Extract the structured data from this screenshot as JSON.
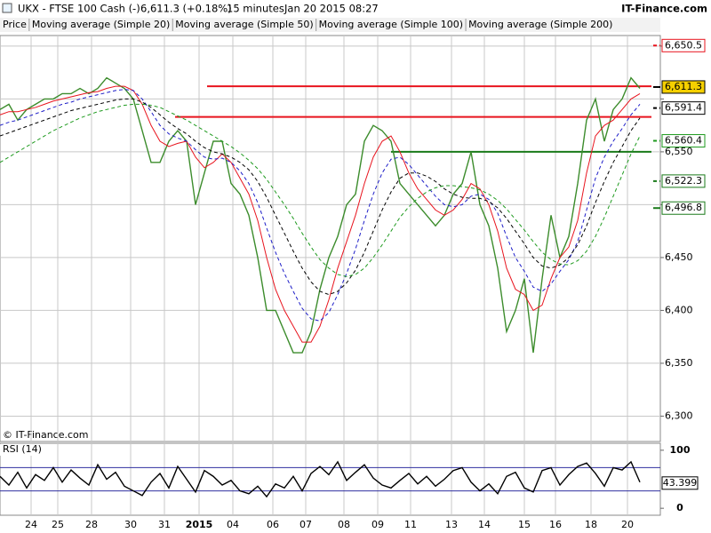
{
  "header": {
    "title": "UKX - FTSE 100 Cash (-)",
    "last": "6,611.3 (+0.18%)",
    "interval": "15 minutes",
    "timestamp": "Jan 20 2015 08:27",
    "source": "IT-Finance.com"
  },
  "chart_data": [
    {
      "type": "line",
      "price_label": "Price",
      "copyright": "© IT-Finance.com",
      "x": [
        0,
        1,
        2,
        3,
        4,
        5,
        6,
        7,
        8,
        9,
        10,
        11,
        12,
        13,
        14,
        15,
        16,
        17,
        18,
        19,
        20,
        21,
        22,
        23,
        24,
        25,
        26,
        27,
        28,
        29,
        30,
        31,
        32,
        33,
        34,
        35,
        36,
        37,
        38,
        39,
        40,
        41,
        42,
        43,
        44,
        45,
        46,
        47,
        48,
        49,
        50,
        51,
        52,
        53,
        54,
        55,
        56,
        57,
        58,
        59,
        60,
        61,
        62,
        63,
        64,
        65,
        66,
        67,
        68,
        69,
        70,
        71,
        72
      ],
      "xlim": [
        0,
        74.3
      ],
      "xticks": [
        {
          "value": 3.5,
          "label": "24"
        },
        {
          "value": 6.5,
          "label": "25"
        },
        {
          "value": 10.3,
          "label": "28"
        },
        {
          "value": 14.7,
          "label": "30"
        },
        {
          "value": 18.5,
          "label": "31"
        },
        {
          "value": 22.4,
          "label": "2015"
        },
        {
          "value": 26.2,
          "label": "04"
        },
        {
          "value": 30.7,
          "label": "06"
        },
        {
          "value": 34.4,
          "label": "07"
        },
        {
          "value": 38.7,
          "label": "08"
        },
        {
          "value": 42.5,
          "label": "09"
        },
        {
          "value": 46.2,
          "label": "11"
        },
        {
          "value": 50.8,
          "label": "13"
        },
        {
          "value": 54.5,
          "label": "14"
        },
        {
          "value": 59,
          "label": "15"
        },
        {
          "value": 62.5,
          "label": "16"
        },
        {
          "value": 66.5,
          "label": "18"
        },
        {
          "value": 70.6,
          "label": "20"
        }
      ],
      "ylim": [
        6276,
        6660
      ],
      "yticks": [
        {
          "value": 6300,
          "label": "6,300"
        },
        {
          "value": 6350,
          "label": "6,350"
        },
        {
          "value": 6400,
          "label": "6,400"
        },
        {
          "value": 6450,
          "label": "6,450"
        },
        {
          "value": 6500,
          "label": ""
        },
        {
          "value": 6550,
          "label": "6,550"
        },
        {
          "value": 6600,
          "label": ""
        },
        {
          "value": 6650,
          "label": ""
        }
      ],
      "series": [
        {
          "name": "Price",
          "color": "#3c8c2c",
          "values": [
            6590,
            6595,
            6580,
            6590,
            6595,
            6600,
            6600,
            6605,
            6605,
            6610,
            6605,
            6610,
            6620,
            6615,
            6610,
            6600,
            6570,
            6540,
            6540,
            6560,
            6570,
            6560,
            6500,
            6530,
            6560,
            6560,
            6520,
            6510,
            6490,
            6450,
            6400,
            6400,
            6380,
            6360,
            6360,
            6380,
            6420,
            6450,
            6470,
            6500,
            6510,
            6560,
            6575,
            6570,
            6560,
            6520,
            6510,
            6500,
            6490,
            6480,
            6490,
            6510,
            6520,
            6550,
            6500,
            6480,
            6440,
            6380,
            6400,
            6430,
            6360,
            6430,
            6490,
            6450,
            6470,
            6520,
            6580,
            6600,
            6560,
            6590,
            6600,
            6620,
            6610
          ]
        },
        {
          "name": "Moving average (Simple 20)",
          "color": "#e8141e",
          "dash": "",
          "values": [
            6585,
            6588,
            6588,
            6590,
            6592,
            6595,
            6598,
            6600,
            6602,
            6604,
            6606,
            6607,
            6610,
            6612,
            6612,
            6608,
            6595,
            6575,
            6560,
            6555,
            6558,
            6560,
            6545,
            6535,
            6540,
            6548,
            6540,
            6525,
            6510,
            6485,
            6450,
            6420,
            6400,
            6385,
            6370,
            6370,
            6385,
            6410,
            6440,
            6465,
            6490,
            6520,
            6545,
            6560,
            6565,
            6550,
            6530,
            6515,
            6505,
            6495,
            6490,
            6495,
            6505,
            6520,
            6515,
            6500,
            6475,
            6440,
            6420,
            6415,
            6400,
            6405,
            6430,
            6450,
            6460,
            6485,
            6530,
            6565,
            6575,
            6580,
            6590,
            6600,
            6605
          ]
        },
        {
          "name": "Moving average (Simple 50)",
          "color": "#1e1ec8",
          "dash": "4 3",
          "values": [
            6575,
            6578,
            6580,
            6583,
            6586,
            6589,
            6592,
            6595,
            6597,
            6600,
            6602,
            6604,
            6606,
            6608,
            6609,
            6608,
            6600,
            6588,
            6575,
            6567,
            6563,
            6560,
            6552,
            6545,
            6543,
            6544,
            6540,
            6532,
            6520,
            6502,
            6478,
            6455,
            6435,
            6418,
            6402,
            6392,
            6390,
            6398,
            6415,
            6435,
            6458,
            6485,
            6510,
            6530,
            6543,
            6545,
            6538,
            6528,
            6518,
            6508,
            6500,
            6498,
            6500,
            6508,
            6510,
            6505,
            6492,
            6470,
            6450,
            6437,
            6422,
            6418,
            6425,
            6437,
            6448,
            6465,
            6495,
            6525,
            6545,
            6560,
            6572,
            6585,
            6595
          ]
        },
        {
          "name": "Moving average (Simple 100)",
          "color": "#000000",
          "dash": "4 3",
          "values": [
            6565,
            6568,
            6571,
            6574,
            6577,
            6580,
            6583,
            6586,
            6589,
            6591,
            6593,
            6595,
            6597,
            6599,
            6600,
            6600,
            6597,
            6592,
            6585,
            6578,
            6572,
            6567,
            6560,
            6554,
            6550,
            6548,
            6545,
            6540,
            6533,
            6522,
            6507,
            6490,
            6473,
            6456,
            6440,
            6427,
            6418,
            6415,
            6418,
            6426,
            6438,
            6455,
            6475,
            6495,
            6512,
            6525,
            6530,
            6530,
            6527,
            6522,
            6515,
            6510,
            6507,
            6506,
            6506,
            6503,
            6497,
            6487,
            6475,
            6463,
            6450,
            6442,
            6440,
            6443,
            6450,
            6462,
            6480,
            6502,
            6522,
            6540,
            6555,
            6570,
            6582
          ]
        },
        {
          "name": "Moving average (Simple 200)",
          "color": "#1e9a1e",
          "dash": "4 3",
          "values": [
            6540,
            6545,
            6550,
            6555,
            6560,
            6565,
            6570,
            6574,
            6578,
            6582,
            6585,
            6588,
            6590,
            6592,
            6594,
            6595,
            6595,
            6594,
            6592,
            6588,
            6584,
            6580,
            6575,
            6570,
            6565,
            6560,
            6555,
            6549,
            6542,
            6534,
            6524,
            6512,
            6500,
            6487,
            6473,
            6460,
            6448,
            6440,
            6434,
            6432,
            6434,
            6440,
            6450,
            6462,
            6475,
            6488,
            6498,
            6506,
            6512,
            6516,
            6518,
            6518,
            6517,
            6516,
            6514,
            6510,
            6504,
            6496,
            6486,
            6476,
            6465,
            6455,
            6448,
            6444,
            6443,
            6447,
            6456,
            6470,
            6488,
            6508,
            6528,
            6548,
            6565
          ]
        }
      ],
      "hlines": [
        {
          "value": 6612,
          "from": 23.3,
          "to": 73.3,
          "color": "#e8141e"
        },
        {
          "value": 6583,
          "from": 19.7,
          "to": 73.3,
          "color": "#e8141e"
        },
        {
          "value": 6550,
          "from": 44,
          "to": 73.3,
          "color": "#1a7a1a"
        }
      ],
      "levels": [
        {
          "value": 6650.5,
          "label": "6,650.5",
          "color": "#e8141e",
          "dash": "4 3"
        },
        {
          "value": 6611.3,
          "label": "6,611.3",
          "color": "#000000",
          "fill": "#f5d000",
          "dash": ""
        },
        {
          "value": 6591.4,
          "label": "6,591.4",
          "color": "#000000",
          "dash": "4 3"
        },
        {
          "value": 6560.4,
          "label": "6,560.4",
          "color": "#1e9a1e",
          "dash": "4 3"
        },
        {
          "value": 6522.3,
          "label": "6,522.3",
          "color": "#1a7a1a",
          "dash": "4 3"
        },
        {
          "value": 6496.8,
          "label": "6,496.8",
          "color": "#1a7a1a",
          "dash": ""
        }
      ]
    },
    {
      "type": "line",
      "series": [
        {
          "name": "RSI (14)",
          "color": "#000000",
          "values": [
            55,
            40,
            62,
            35,
            58,
            48,
            70,
            45,
            66,
            52,
            40,
            75,
            50,
            62,
            38,
            30,
            22,
            45,
            60,
            35,
            72,
            50,
            28,
            65,
            55,
            40,
            48,
            30,
            25,
            38,
            20,
            42,
            35,
            55,
            30,
            60,
            72,
            58,
            80,
            48,
            62,
            75,
            52,
            40,
            35,
            48,
            60,
            42,
            55,
            38,
            50,
            65,
            70,
            45,
            30,
            42,
            25,
            55,
            62,
            35,
            28,
            65,
            70,
            40,
            58,
            72,
            78,
            60,
            38,
            70,
            66,
            80,
            45
          ]
        }
      ],
      "ylim": [
        -12,
        112
      ],
      "yticks": [
        0,
        100
      ],
      "bands": [
        30,
        70
      ],
      "last_value": 43.399
    }
  ]
}
